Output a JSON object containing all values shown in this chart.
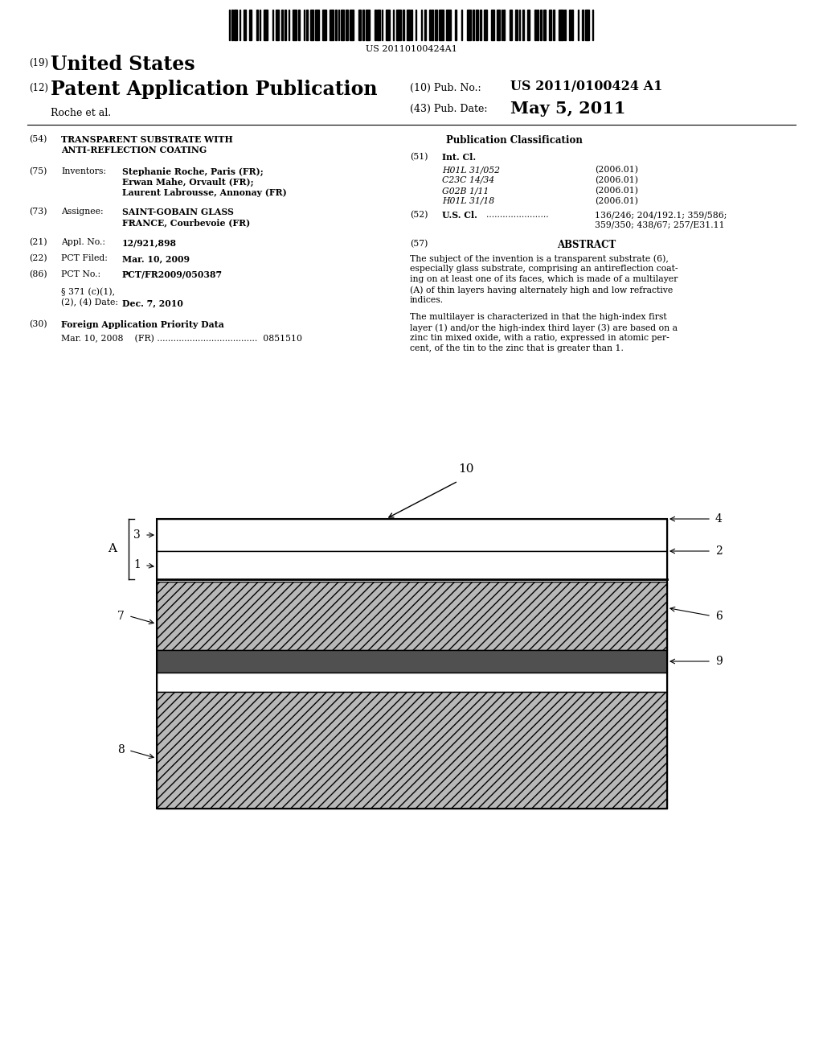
{
  "background_color": "#ffffff",
  "barcode_text": "US 20110100424A1",
  "header_19_label": "(19)",
  "header_19_title": "United States",
  "header_12_label": "(12)",
  "header_12_title": "Patent Application Publication",
  "pub_no_label": "(10) Pub. No.:",
  "pub_no_value": "US 2011/0100424 A1",
  "pub_date_label": "(43) Pub. Date:",
  "pub_date_value": "May 5, 2011",
  "author_line": "Roche et al.",
  "f54_label": "(54)",
  "f54_line1": "TRANSPARENT SUBSTRATE WITH",
  "f54_line2": "ANTI-REFLECTION COATING",
  "f75_label": "(75)",
  "f75_name": "Inventors:",
  "f75_val1": "Stephanie Roche, Paris (FR);",
  "f75_val2": "Erwan Mahe, Orvault (FR);",
  "f75_val3": "Laurent Labrousse, Annonay (FR)",
  "f73_label": "(73)",
  "f73_name": "Assignee:",
  "f73_val1": "SAINT-GOBAIN GLASS",
  "f73_val2": "FRANCE, Courbevoie (FR)",
  "f21_label": "(21)",
  "f21_name": "Appl. No.:",
  "f21_val": "12/921,898",
  "f22_label": "(22)",
  "f22_name": "PCT Filed:",
  "f22_val": "Mar. 10, 2009",
  "f86_label": "(86)",
  "f86_name": "PCT No.:",
  "f86_val": "PCT/FR2009/050387",
  "f86b_line1": "§ 371 (c)(1),",
  "f86b_line2": "(2), (4) Date:",
  "f86b_val2": "Dec. 7, 2010",
  "f30_label": "(30)",
  "f30_name": "Foreign Application Priority Data",
  "f30_val": "Mar. 10, 2008    (FR) .....................................  0851510",
  "pub_class_title": "Publication Classification",
  "f51_label": "(51)",
  "f51_name": "Int. Cl.",
  "f51_rows": [
    [
      "H01L 31/052",
      "(2006.01)"
    ],
    [
      "C23C 14/34",
      "(2006.01)"
    ],
    [
      "G02B 1/11",
      "(2006.01)"
    ],
    [
      "H01L 31/18",
      "(2006.01)"
    ]
  ],
  "f52_label": "(52)",
  "f52_name": "U.S. Cl.",
  "f52_dots": ".......................",
  "f52_val1": "136/246; 204/192.1; 359/586;",
  "f52_val2": "359/350; 438/67; 257/E31.11",
  "f57_label": "(57)",
  "f57_name": "ABSTRACT",
  "abs1_lines": [
    "The subject of the invention is a transparent substrate (6),",
    "especially glass substrate, comprising an antireflection coat-",
    "ing on at least one of its faces, which is made of a multilayer",
    "(A) of thin layers having alternately high and low refractive",
    "indices."
  ],
  "abs2_lines": [
    "The multilayer is characterized in that the high-index first",
    "layer (1) and/or the high-index third layer (3) are based on a",
    "zinc tin mixed oxide, with a ratio, expressed in atomic per-",
    "cent, of the tin to the zinc that is greater than 1."
  ],
  "diag_label_10": "10",
  "diag_label_A": "A",
  "diag_labels_left": [
    "3",
    "1",
    "7",
    "8"
  ],
  "diag_labels_right": [
    "4",
    "2",
    "6",
    "9"
  ],
  "layer_hatch_color": "#b8b8b8",
  "layer_dark_color": "#505050",
  "layer_white_color": "#ffffff"
}
